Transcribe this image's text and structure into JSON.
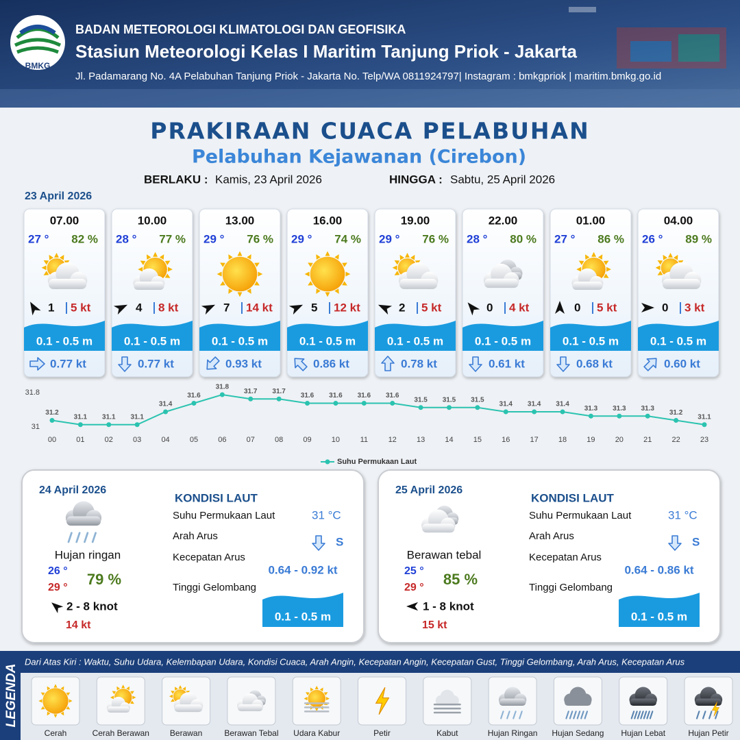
{
  "header": {
    "logo": "BMKG",
    "agency": "BADAN METEOROLOGI KLIMATOLOGI DAN GEOFISIKA",
    "station": "Stasiun Meteorologi Kelas I Maritim Tanjung Priok - Jakarta",
    "address": "Jl. Padamarang No. 4A Pelabuhan Tanjung Priok - Jakarta No. Telp/WA 0811924797| Instagram : bmkgpriok | maritim.bmkg.go.id"
  },
  "title": "PRAKIRAAN CUACA PELABUHAN",
  "subtitle": "Pelabuhan Kejawanan (Cirebon)",
  "validity": {
    "from_label": "BERLAKU :",
    "from": "Kamis, 23 April 2026",
    "to_label": "HINGGA :",
    "to": "Sabtu, 25 April 2026"
  },
  "today": {
    "date": "23 April 2026",
    "slots": [
      {
        "time": "07.00",
        "temp": "27 °",
        "humidity": "82 %",
        "icon": 2,
        "wind_dir": 330,
        "wind": "1",
        "gust": "5 kt",
        "wave": "0.1 - 0.5 m",
        "current_dir": 90,
        "current": "0.77 kt"
      },
      {
        "time": "10.00",
        "temp": "28 °",
        "humidity": "77 %",
        "icon": 1,
        "wind_dir": 65,
        "wind": "4",
        "gust": "8 kt",
        "wave": "0.1 - 0.5 m",
        "current_dir": 180,
        "current": "0.77 kt"
      },
      {
        "time": "13.00",
        "temp": "29 °",
        "humidity": "76 %",
        "icon": 0,
        "wind_dir": 65,
        "wind": "7",
        "gust": "14 kt",
        "wave": "0.1 - 0.5 m",
        "current_dir": 225,
        "current": "0.93 kt"
      },
      {
        "time": "16.00",
        "temp": "29 °",
        "humidity": "74 %",
        "icon": 0,
        "wind_dir": 65,
        "wind": "5",
        "gust": "12 kt",
        "wave": "0.1 - 0.5 m",
        "current_dir": 315,
        "current": "0.86 kt"
      },
      {
        "time": "19.00",
        "temp": "29 °",
        "humidity": "76 %",
        "icon": 2,
        "wind_dir": 295,
        "wind": "2",
        "gust": "5 kt",
        "wave": "0.1 - 0.5 m",
        "current_dir": 0,
        "current": "0.78 kt"
      },
      {
        "time": "22.00",
        "temp": "28 °",
        "humidity": "80 %",
        "icon": 3,
        "wind_dir": 320,
        "wind": "0",
        "gust": "4 kt",
        "wave": "0.1 - 0.5 m",
        "current_dir": 180,
        "current": "0.61 kt"
      },
      {
        "time": "01.00",
        "temp": "27 °",
        "humidity": "86 %",
        "icon": 1,
        "wind_dir": 0,
        "wind": "0",
        "gust": "5 kt",
        "wave": "0.1 - 0.5 m",
        "current_dir": 180,
        "current": "0.68 kt"
      },
      {
        "time": "04.00",
        "temp": "26 °",
        "humidity": "89 %",
        "icon": 2,
        "wind_dir": 90,
        "wind": "0",
        "gust": "3 kt",
        "wave": "0.1 - 0.5 m",
        "current_dir": 45,
        "current": "0.60 kt"
      }
    ]
  },
  "chart_data": {
    "type": "line",
    "categories": [
      "00",
      "01",
      "02",
      "03",
      "04",
      "05",
      "06",
      "07",
      "08",
      "09",
      "10",
      "11",
      "12",
      "13",
      "14",
      "15",
      "16",
      "17",
      "18",
      "19",
      "20",
      "21",
      "22",
      "23"
    ],
    "series": [
      {
        "name": "Suhu Permukaan Laut",
        "color": "#2bc3b0",
        "values": [
          31.2,
          31.1,
          31.1,
          31.1,
          31.4,
          31.6,
          31.8,
          31.7,
          31.7,
          31.6,
          31.6,
          31.6,
          31.6,
          31.5,
          31.5,
          31.5,
          31.4,
          31.4,
          31.4,
          31.3,
          31.3,
          31.3,
          31.2,
          31.1
        ]
      }
    ],
    "ylim": [
      31,
      31.8
    ],
    "yticks": [
      31,
      31.8
    ],
    "grid": false,
    "legend": "bottom"
  },
  "days": [
    {
      "date": "24 April 2026",
      "icon": 7,
      "condition": "Hujan ringan",
      "temp_min": "26 °",
      "temp_max": "29 °",
      "humidity": "79 %",
      "wind_dir": 310,
      "wind": "2 - 8 knot",
      "gust": "14 kt",
      "sea": {
        "title": "KONDISI LAUT",
        "sst_label": "Suhu Permukaan Laut",
        "sst": "31 °C",
        "dir_label": "Arah Arus",
        "dir": "S",
        "dir_deg": 180,
        "speed_label": "Kecepatan Arus",
        "speed": "0.64 - 0.92 kt",
        "wave_label": "Tinggi Gelombang",
        "wave": "0.1 - 0.5 m"
      }
    },
    {
      "date": "25 April 2026",
      "icon": 3,
      "condition": "Berawan tebal",
      "temp_min": "25 °",
      "temp_max": "29 °",
      "humidity": "85 %",
      "wind_dir": 270,
      "wind": "1 - 8 knot",
      "gust": "15 kt",
      "sea": {
        "title": "KONDISI LAUT",
        "sst_label": "Suhu Permukaan Laut",
        "sst": "31 °C",
        "dir_label": "Arah Arus",
        "dir": "S",
        "dir_deg": 180,
        "speed_label": "Kecepatan Arus",
        "speed": "0.64 - 0.86 kt",
        "wave_label": "Tinggi Gelombang",
        "wave": "0.1 - 0.5 m"
      }
    }
  ],
  "legend": {
    "title": "LEGENDA",
    "description": "Dari Atas Kiri : Waktu, Suhu Udara, Kelembapan Udara, Kondisi Cuaca, Arah Angin, Kecepatan Angin, Kecepatan Gust, Tinggi Gelombang, Arah Arus, Kecepatan Arus",
    "items": [
      "Cerah",
      "Cerah Berawan",
      "Berawan",
      "Berawan Tebal",
      "Udara Kabur",
      "Petir",
      "Kabut",
      "Hujan Ringan",
      "Hujan Sedang",
      "Hujan Lebat",
      "Hujan Petir"
    ]
  }
}
